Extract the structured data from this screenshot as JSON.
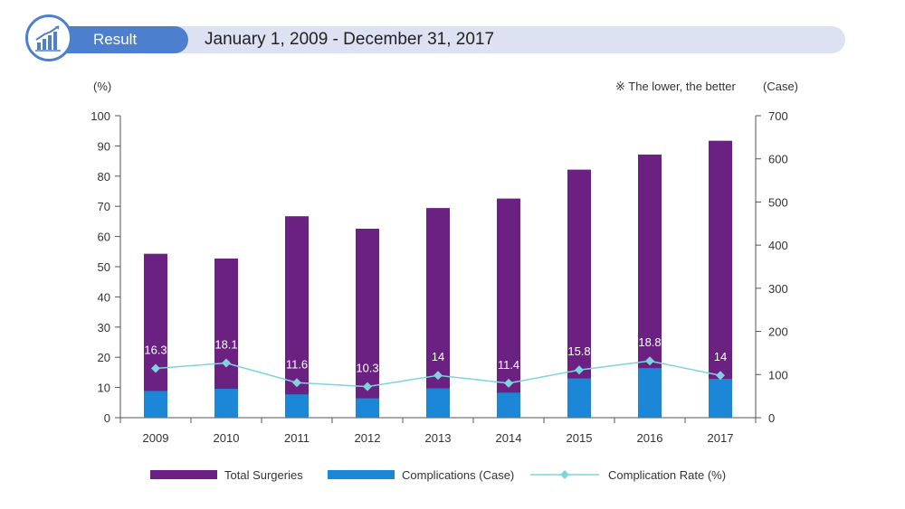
{
  "header": {
    "result_label": "Result",
    "date_range": "January 1, 2009 - December 31, 2017"
  },
  "colors": {
    "accent": "#4d7fcf",
    "banner": "#dde2f3",
    "total": "#6a2181",
    "complications": "#1b87d6",
    "rate": "#7fd3e0"
  },
  "chart_data": {
    "type": "bar",
    "categories": [
      "2009",
      "2010",
      "2011",
      "2012",
      "2013",
      "2014",
      "2015",
      "2016",
      "2017"
    ],
    "series": [
      {
        "name": "Total Surgeries",
        "axis": "right",
        "type": "bar",
        "values": [
          380,
          369,
          467,
          438,
          486,
          508,
          575,
          610,
          642
        ]
      },
      {
        "name": "Complications (Case)",
        "axis": "right",
        "type": "bar",
        "values": [
          62,
          67,
          54,
          45,
          68,
          58,
          91,
          115,
          90
        ]
      },
      {
        "name": "Complication Rate (%)",
        "axis": "left",
        "type": "line",
        "values": [
          16.3,
          18.1,
          11.6,
          10.3,
          14,
          11.4,
          15.8,
          18.8,
          14
        ]
      }
    ],
    "left_axis": {
      "label": "(%)",
      "min": 0,
      "max": 100,
      "ticks": [
        "0",
        "10",
        "20",
        "30",
        "40",
        "50",
        "60",
        "70",
        "80",
        "90",
        "100"
      ]
    },
    "right_axis": {
      "label": "(Case)",
      "min": 0,
      "max": 700,
      "ticks": [
        "0",
        "100",
        "200",
        "300",
        "400",
        "500",
        "600",
        "700"
      ]
    },
    "note": "※ The lower, the better",
    "legend": [
      "Total Surgeries",
      "Complications (Case)",
      "Complication Rate (%)"
    ]
  }
}
